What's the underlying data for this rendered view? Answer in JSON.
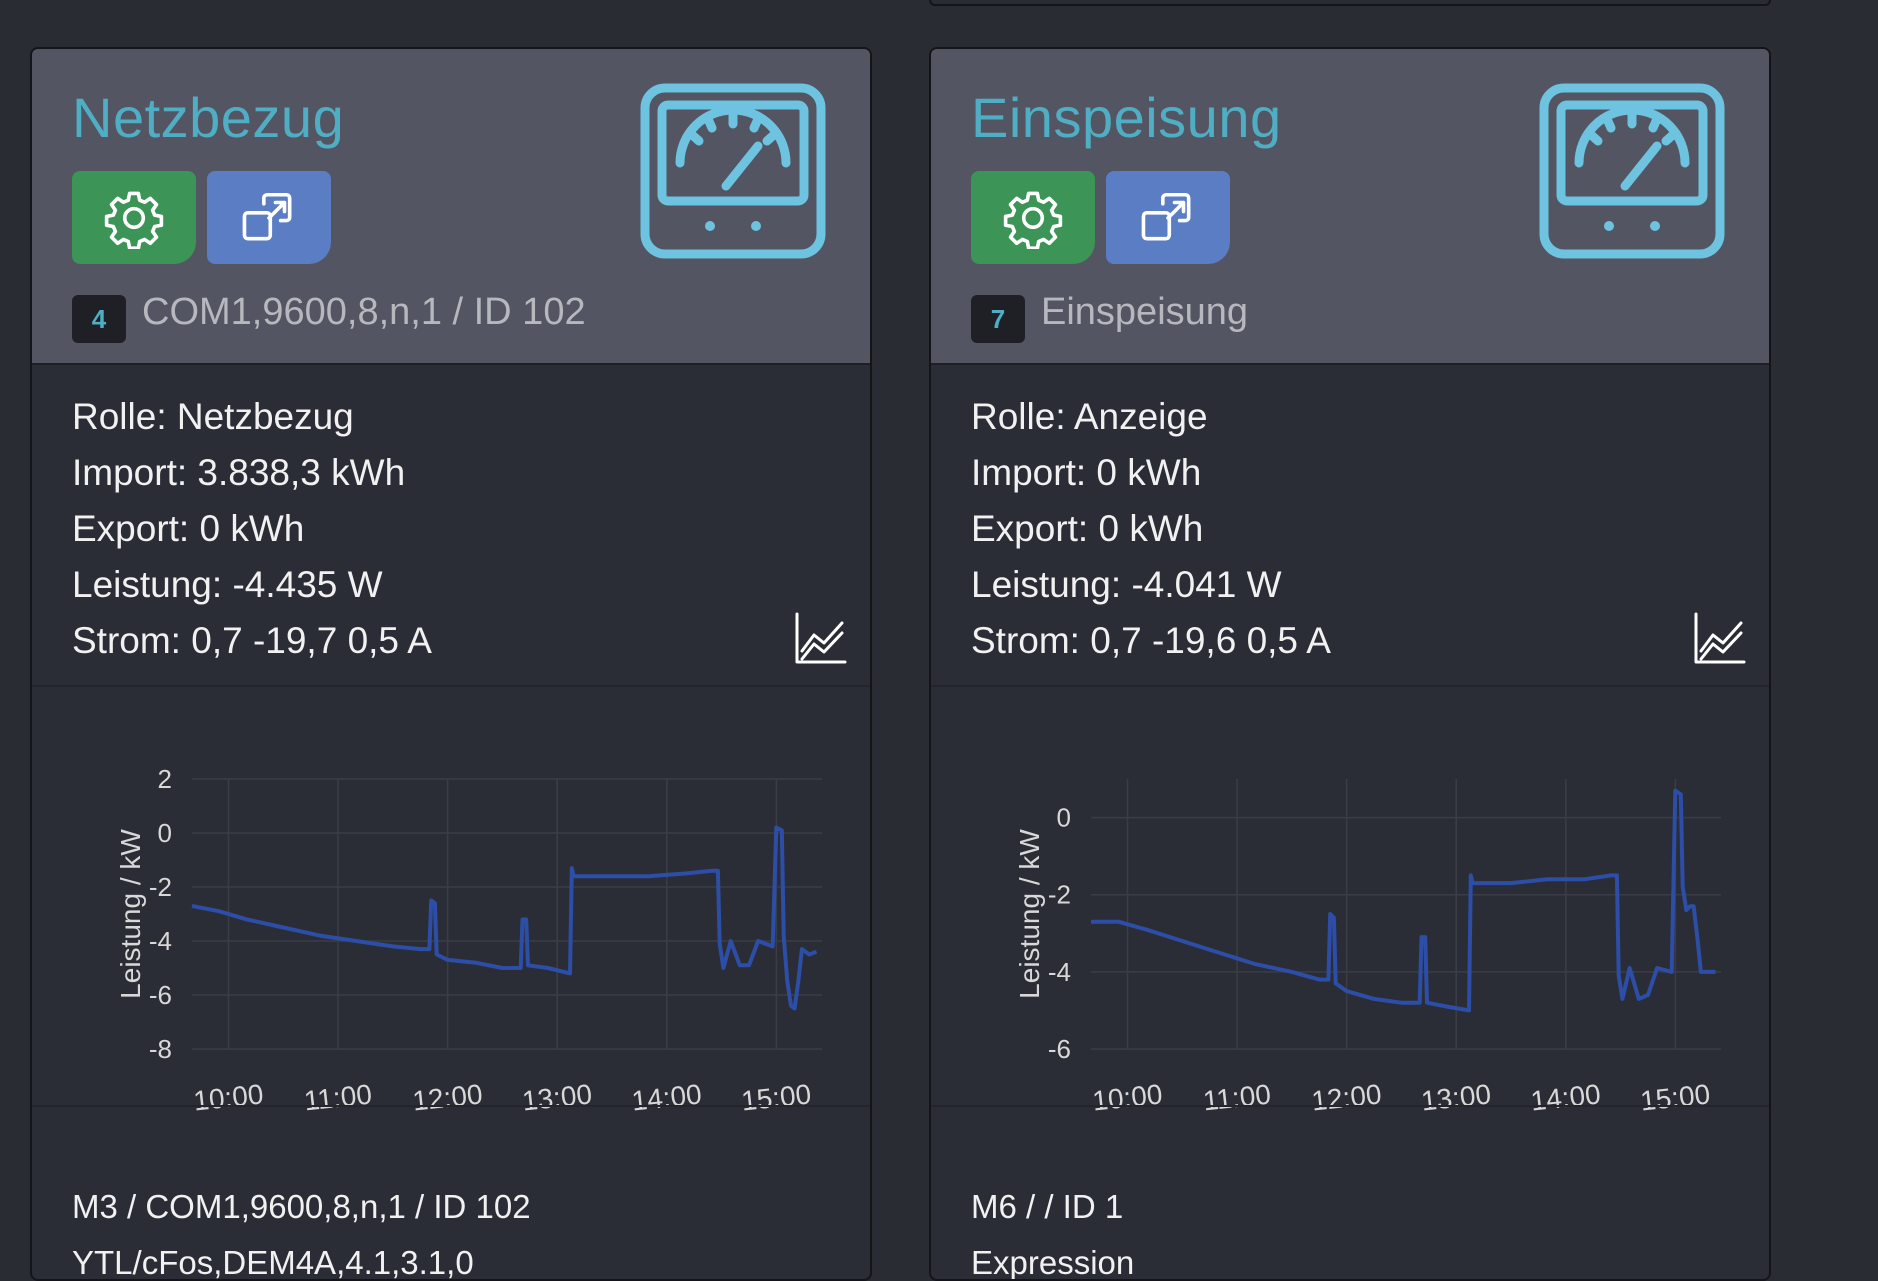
{
  "cards": [
    {
      "title": "Netzbezug",
      "id_badge": "4",
      "subtitle": "COM1,9600,8,n,1 / ID 102",
      "stats": {
        "role": "Rolle: Netzbezug",
        "import": "Import: 3.838,3 kWh",
        "export": "Export: 0 kWh",
        "power": "Leistung: -4.435 W",
        "current": "Strom: 0,7 -19,7 0,5 A"
      },
      "footer": {
        "line1": "M3 / COM1,9600,8,n,1 / ID 102",
        "line2": "YTL/cFos,DEM4A,4.1,3.1,0"
      },
      "icons": {
        "settings": "gear-icon",
        "open": "open-external-icon",
        "meter": "gauge-meter-icon",
        "chart": "trend-chart-icon"
      },
      "colors": {
        "title": "#4faec4",
        "settings_button": "#3c9457",
        "open_button": "#5b7dc4",
        "series": "#2c4ea6"
      },
      "chart_data": {
        "type": "line",
        "ylabel": "Leistung / kW",
        "ylim": [
          -8,
          2
        ],
        "yticks": [
          2,
          0,
          -2,
          -4,
          -6,
          -8
        ],
        "xlim": [
          "09:40",
          "15:25"
        ],
        "xticks": [
          "10:00",
          "11:00",
          "12:00",
          "13:00",
          "14:00",
          "15:00"
        ],
        "grid": true,
        "series": [
          {
            "x": [
              "09:40",
              "09:55",
              "10:10",
              "10:30",
              "10:50",
              "11:10",
              "11:30",
              "11:45",
              "11:50",
              "11:51",
              "11:53",
              "11:54",
              "12:00",
              "12:15",
              "12:30",
              "12:40",
              "12:41",
              "12:43",
              "12:44",
              "12:55",
              "13:07",
              "13:08",
              "13:09",
              "13:30",
              "13:50",
              "14:10",
              "14:25",
              "14:28",
              "14:29",
              "14:31",
              "14:35",
              "14:40",
              "14:45",
              "14:50",
              "14:58",
              "15:00",
              "15:03",
              "15:04",
              "15:06",
              "15:08",
              "15:10",
              "15:12",
              "15:14",
              "15:18",
              "15:22"
            ],
            "y": [
              -2.7,
              -2.9,
              -3.2,
              -3.5,
              -3.8,
              -4.0,
              -4.2,
              -4.3,
              -4.3,
              -2.5,
              -2.6,
              -4.5,
              -4.7,
              -4.8,
              -5.0,
              -5.0,
              -3.2,
              -3.2,
              -4.9,
              -5.0,
              -5.2,
              -1.3,
              -1.6,
              -1.6,
              -1.6,
              -1.5,
              -1.4,
              -1.4,
              -4.1,
              -5.0,
              -4.0,
              -4.9,
              -4.9,
              -4.0,
              -4.2,
              0.2,
              0.1,
              -3.8,
              -5.5,
              -6.4,
              -6.5,
              -5.5,
              -4.3,
              -4.5,
              -4.4
            ]
          }
        ]
      }
    },
    {
      "title": "Einspeisung",
      "id_badge": "7",
      "subtitle": "Einspeisung",
      "stats": {
        "role": "Rolle: Anzeige",
        "import": "Import: 0 kWh",
        "export": "Export: 0 kWh",
        "power": "Leistung: -4.041 W",
        "current": "Strom: 0,7 -19,6 0,5 A"
      },
      "footer": {
        "line1": "M6 / / ID 1",
        "line2": "Expression"
      },
      "icons": {
        "settings": "gear-icon",
        "open": "open-external-icon",
        "meter": "gauge-meter-icon",
        "chart": "trend-chart-icon"
      },
      "colors": {
        "title": "#4faec4",
        "settings_button": "#3c9457",
        "open_button": "#5b7dc4",
        "series": "#2c4ea6"
      },
      "chart_data": {
        "type": "line",
        "ylabel": "Leistung / kW",
        "ylim": [
          -6,
          1
        ],
        "yticks": [
          0,
          -2,
          -4,
          -6
        ],
        "xlim": [
          "09:40",
          "15:25"
        ],
        "xticks": [
          "10:00",
          "11:00",
          "12:00",
          "13:00",
          "14:00",
          "15:00"
        ],
        "grid": true,
        "series": [
          {
            "x": [
              "09:40",
              "09:55",
              "10:10",
              "10:30",
              "10:50",
              "11:10",
              "11:30",
              "11:45",
              "11:50",
              "11:51",
              "11:53",
              "11:54",
              "12:00",
              "12:15",
              "12:30",
              "12:40",
              "12:41",
              "12:43",
              "12:44",
              "12:55",
              "13:07",
              "13:08",
              "13:09",
              "13:30",
              "13:50",
              "14:10",
              "14:25",
              "14:28",
              "14:29",
              "14:31",
              "14:35",
              "14:40",
              "14:45",
              "14:50",
              "14:58",
              "15:00",
              "15:03",
              "15:04",
              "15:06",
              "15:08",
              "15:10",
              "15:12",
              "15:14",
              "15:18",
              "15:22"
            ],
            "y": [
              -2.7,
              -2.7,
              -2.9,
              -3.2,
              -3.5,
              -3.8,
              -4.0,
              -4.2,
              -4.2,
              -2.5,
              -2.6,
              -4.3,
              -4.5,
              -4.7,
              -4.8,
              -4.8,
              -3.1,
              -3.1,
              -4.8,
              -4.9,
              -5.0,
              -1.5,
              -1.7,
              -1.7,
              -1.6,
              -1.6,
              -1.5,
              -1.5,
              -4.1,
              -4.7,
              -3.9,
              -4.7,
              -4.6,
              -3.9,
              -4.0,
              0.7,
              0.6,
              -1.8,
              -2.4,
              -2.3,
              -2.3,
              -3.1,
              -4.0,
              -4.0,
              -4.0
            ]
          }
        ]
      }
    }
  ]
}
